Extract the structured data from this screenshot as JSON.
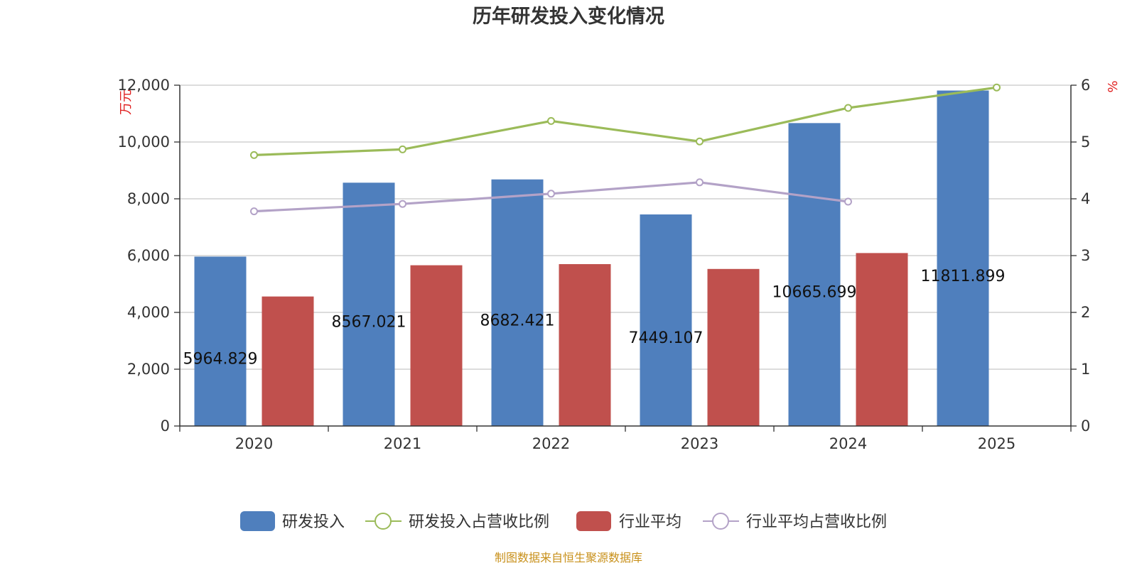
{
  "chart_data": {
    "type": "bar",
    "title": "历年研发投入变化情况",
    "left_unit": "万元",
    "right_unit": "%",
    "categories": [
      "2020",
      "2021",
      "2022",
      "2023",
      "2024",
      "2025"
    ],
    "y_left": {
      "min": 0,
      "max": 12000,
      "ticks": [
        0,
        2000,
        4000,
        6000,
        8000,
        10000,
        12000
      ],
      "tick_labels": [
        "0",
        "2,000",
        "4,000",
        "6,000",
        "8,000",
        "10,000",
        "12,000"
      ]
    },
    "y_right": {
      "min": 0,
      "max": 6,
      "ticks": [
        0,
        1,
        2,
        3,
        4,
        5,
        6
      ],
      "tick_labels": [
        "0",
        "1",
        "2",
        "3",
        "4",
        "5",
        "6"
      ]
    },
    "grid": true,
    "legend_position": "bottom",
    "series": [
      {
        "name": "研发投入",
        "kind": "bar",
        "axis": "left",
        "color": "#4f7fbd",
        "values": [
          5964.829,
          8567.021,
          8682.421,
          7449.107,
          10665.699,
          11811.899
        ],
        "labels": [
          "5964.829",
          "8567.021",
          "8682.421",
          "7449.107",
          "10665.699",
          "11811.899"
        ]
      },
      {
        "name": "研发投入占营收比例",
        "kind": "line",
        "axis": "right",
        "color": "#9bbb59",
        "values": [
          4.77,
          4.87,
          5.37,
          5.01,
          5.6,
          5.96
        ]
      },
      {
        "name": "行业平均",
        "kind": "bar",
        "axis": "left",
        "color": "#c0504d",
        "values": [
          4560,
          5660,
          5700,
          5530,
          6090,
          null
        ]
      },
      {
        "name": "行业平均占营收比例",
        "kind": "line",
        "axis": "right",
        "color": "#b3a2c7",
        "values": [
          3.78,
          3.91,
          4.09,
          4.29,
          3.95,
          null
        ]
      }
    ],
    "source": "制图数据来自恒生聚源数据库"
  }
}
